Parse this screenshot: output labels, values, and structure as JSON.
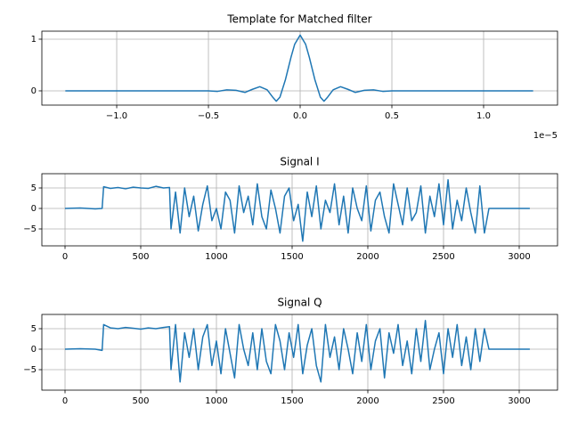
{
  "chart_data": [
    {
      "type": "line",
      "title": "Template for Matched filter",
      "color": "#1f77b4",
      "grid": true,
      "x": [
        -1.28e-05,
        -1e-05,
        -8e-06,
        -6e-06,
        -5e-06,
        -4.5e-06,
        -4e-06,
        -3.5e-06,
        -3e-06,
        -2.6e-06,
        -2.2e-06,
        -1.8e-06,
        -1.5e-06,
        -1.3e-06,
        -1.1e-06,
        -8e-07,
        -5e-07,
        -3e-07,
        0,
        3e-07,
        5e-07,
        8e-07,
        1.1e-06,
        1.3e-06,
        1.5e-06,
        1.8e-06,
        2.2e-06,
        2.6e-06,
        3e-06,
        3.5e-06,
        4e-06,
        4.5e-06,
        5e-06,
        6e-06,
        8e-06,
        1e-05,
        1.27e-05
      ],
      "values": [
        0,
        0,
        0,
        0,
        0,
        -0.01,
        0.02,
        0.01,
        -0.03,
        0.03,
        0.08,
        0.02,
        -0.12,
        -0.2,
        -0.12,
        0.22,
        0.65,
        0.9,
        1.08,
        0.9,
        0.65,
        0.22,
        -0.12,
        -0.2,
        -0.12,
        0.02,
        0.08,
        0.03,
        -0.03,
        0.01,
        0.02,
        -0.01,
        0,
        0,
        0,
        0,
        0
      ],
      "xlim": [
        -1.408e-05,
        1.403e-05
      ],
      "ylim": [
        -0.276,
        1.155
      ],
      "xticks": [
        {
          "value": -1e-05,
          "label": "−1.0"
        },
        {
          "value": -5e-06,
          "label": "−0.5"
        },
        {
          "value": 0,
          "label": "0.0"
        },
        {
          "value": 5e-06,
          "label": "0.5"
        },
        {
          "value": 1e-05,
          "label": "1.0"
        }
      ],
      "yticks": [
        0,
        1
      ],
      "x_offset_text": "1e−5"
    },
    {
      "type": "line",
      "title": "Signal I",
      "color": "#1f77b4",
      "grid": true,
      "x": [
        0,
        100,
        200,
        245,
        255,
        300,
        350,
        400,
        450,
        500,
        550,
        600,
        650,
        690,
        700,
        730,
        760,
        790,
        820,
        850,
        880,
        910,
        940,
        970,
        1000,
        1030,
        1060,
        1090,
        1120,
        1150,
        1180,
        1210,
        1240,
        1270,
        1300,
        1330,
        1360,
        1390,
        1420,
        1450,
        1480,
        1510,
        1540,
        1570,
        1600,
        1630,
        1660,
        1690,
        1720,
        1750,
        1780,
        1810,
        1840,
        1870,
        1900,
        1930,
        1960,
        1990,
        2020,
        2050,
        2080,
        2110,
        2140,
        2170,
        2200,
        2230,
        2260,
        2290,
        2320,
        2350,
        2380,
        2410,
        2440,
        2470,
        2500,
        2530,
        2560,
        2590,
        2620,
        2650,
        2680,
        2710,
        2740,
        2770,
        2800,
        2810,
        2900,
        3000,
        3070
      ],
      "values": [
        0,
        0.1,
        -0.1,
        0,
        5.3,
        4.9,
        5.1,
        4.8,
        5.2,
        5.0,
        4.9,
        5.4,
        5.0,
        5.1,
        -5,
        4,
        -6,
        5,
        -2,
        3,
        -5.5,
        1,
        5.5,
        -3,
        0,
        -5,
        4,
        2,
        -6,
        5.5,
        -1,
        3,
        -4,
        6,
        -2,
        -5,
        4.5,
        0,
        -6,
        3,
        5,
        -3,
        1,
        -8,
        4,
        -2,
        5.5,
        -5,
        2,
        -1,
        6,
        -4,
        3,
        -6,
        5,
        0,
        -3,
        5.5,
        -5.5,
        2,
        4,
        -2,
        -6,
        6,
        1,
        -4,
        5,
        -3,
        -1,
        5.5,
        -6,
        3,
        -2,
        6,
        -4,
        7,
        -5,
        2,
        -3,
        5,
        -1,
        -6,
        5.5,
        -6,
        0,
        0,
        0,
        0,
        0
      ],
      "xlim": [
        -153,
        3253
      ],
      "ylim": [
        -9.13,
        8.48
      ],
      "xticks": [
        0,
        500,
        1000,
        1500,
        2000,
        2500,
        3000
      ],
      "yticks": [
        {
          "value": -5,
          "label": "−5"
        },
        0,
        5
      ]
    },
    {
      "type": "line",
      "title": "Signal Q",
      "color": "#1f77b4",
      "grid": true,
      "x": [
        0,
        100,
        200,
        245,
        255,
        300,
        350,
        400,
        450,
        500,
        550,
        600,
        650,
        690,
        700,
        730,
        760,
        790,
        820,
        850,
        880,
        910,
        940,
        970,
        1000,
        1030,
        1060,
        1090,
        1120,
        1150,
        1180,
        1210,
        1240,
        1270,
        1300,
        1330,
        1360,
        1390,
        1420,
        1450,
        1480,
        1510,
        1540,
        1570,
        1600,
        1630,
        1660,
        1690,
        1720,
        1750,
        1780,
        1810,
        1840,
        1870,
        1900,
        1930,
        1960,
        1990,
        2020,
        2050,
        2080,
        2110,
        2140,
        2170,
        2200,
        2230,
        2260,
        2290,
        2320,
        2350,
        2380,
        2410,
        2440,
        2470,
        2500,
        2530,
        2560,
        2590,
        2620,
        2650,
        2680,
        2710,
        2740,
        2770,
        2800,
        2810,
        2900,
        3000,
        3070
      ],
      "values": [
        0,
        0.1,
        0,
        -0.3,
        6,
        5.2,
        5.0,
        5.3,
        5.1,
        4.9,
        5.2,
        5.0,
        5.3,
        5.5,
        -5,
        6,
        -8,
        4,
        -2,
        5,
        -5,
        3,
        6,
        -4,
        2,
        -6,
        5,
        -1,
        -7,
        6,
        0,
        -4,
        4,
        -5,
        5,
        -3,
        -6,
        6,
        2,
        -5,
        4,
        -2,
        6,
        -6,
        1,
        5,
        -4,
        -8,
        6,
        -2,
        3,
        -5,
        5,
        0,
        -6,
        4,
        -3,
        6,
        -5,
        2,
        5,
        -7,
        4,
        -1,
        6,
        -4,
        2,
        -6,
        5,
        -3,
        7,
        -5,
        0,
        4,
        -6,
        5,
        -2,
        6,
        -4,
        3,
        -5,
        5,
        -3,
        5,
        0,
        0,
        0,
        0,
        0
      ],
      "xlim": [
        -153,
        3253
      ],
      "ylim": [
        -10.0,
        8.48
      ],
      "xticks": [
        0,
        500,
        1000,
        1500,
        2000,
        2500,
        3000
      ],
      "yticks": [
        {
          "value": -5,
          "label": "−5"
        },
        0,
        5
      ]
    }
  ]
}
